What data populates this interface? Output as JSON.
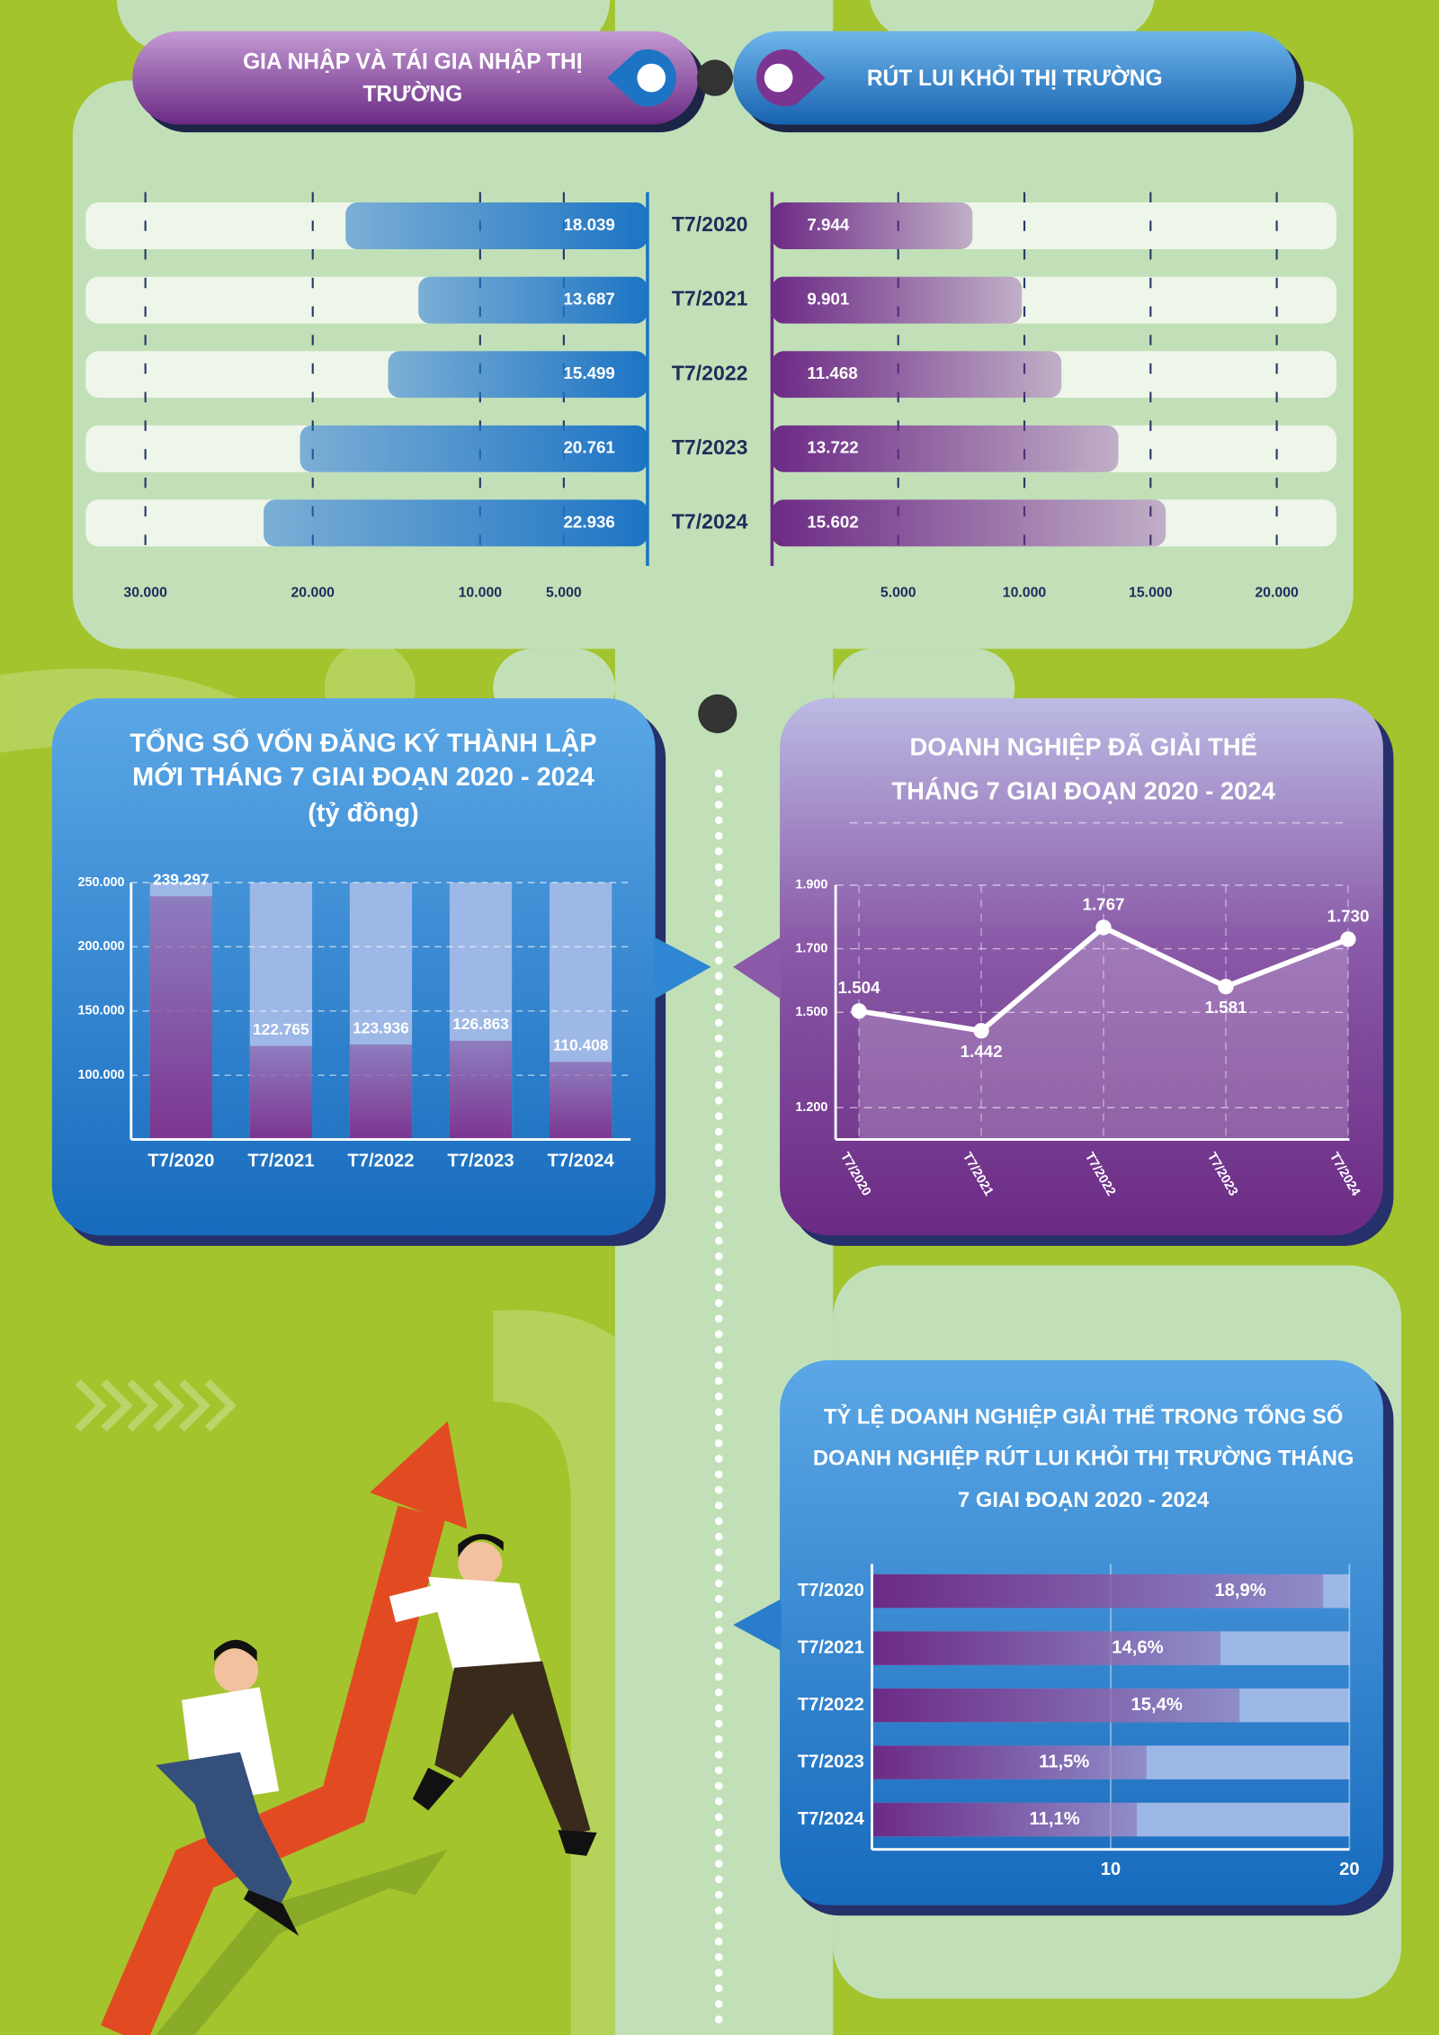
{
  "chart_data": [
    {
      "type": "butterfly",
      "categories": [
        "T7/2020",
        "T7/2021",
        "T7/2022",
        "T7/2023",
        "T7/2024"
      ],
      "grid": true,
      "series": [
        {
          "name": "GIA NHẬP VÀ TÁI GIA NHẬP THỊ TRƯỜNG",
          "color": "#1d74c4",
          "values": [
            18039,
            13687,
            15499,
            20761,
            22936
          ],
          "value_labels": [
            "18.039",
            "13.687",
            "15.499",
            "20.761",
            "22.936"
          ],
          "xlim": [
            0,
            30000
          ],
          "xticks": [
            {
              "value": 30000,
              "label": "30.000"
            },
            {
              "value": 20000,
              "label": "20.000"
            },
            {
              "value": 10000,
              "label": "10.000"
            },
            {
              "value": 5000,
              "label": "5.000"
            }
          ]
        },
        {
          "name": "RÚT LUI KHỎI THỊ TRƯỜNG",
          "color": "#6c2a85",
          "values": [
            7944,
            9901,
            11468,
            13722,
            15602
          ],
          "value_labels": [
            "7.944",
            "9.901",
            "11.468",
            "13.722",
            "15.602"
          ],
          "xlim": [
            0,
            20000
          ],
          "xticks": [
            {
              "value": 5000,
              "label": "5.000"
            },
            {
              "value": 10000,
              "label": "10.000"
            },
            {
              "value": 15000,
              "label": "15.000"
            },
            {
              "value": 20000,
              "label": "20.000"
            }
          ]
        }
      ]
    },
    {
      "type": "bar",
      "title": "TỔNG SỐ VỐN ĐĂNG KÝ THÀNH LẬP MỚI THÁNG 7 GIAI ĐOẠN 2020 - 2024",
      "subtitle": "(tỷ đồng)",
      "categories": [
        "T7/2020",
        "T7/2021",
        "T7/2022",
        "T7/2023",
        "T7/2024"
      ],
      "values": [
        239297,
        122765,
        123936,
        126863,
        110408
      ],
      "value_labels": [
        "239.297",
        "122.765",
        "123.936",
        "126.863",
        "110.408"
      ],
      "color": "#7b3590",
      "ylim": [
        50000,
        250000
      ],
      "yticks": [
        {
          "value": 100000,
          "label": "100.000"
        },
        {
          "value": 150000,
          "label": "150.000"
        },
        {
          "value": 200000,
          "label": "200.000"
        },
        {
          "value": 250000,
          "label": "250.000"
        }
      ],
      "grid": true
    },
    {
      "type": "line",
      "title": "DOANH NGHIỆP ĐÃ GIẢI THỂ THÁNG 7 GIAI ĐOẠN 2020 - 2024",
      "categories": [
        "T7/2020",
        "T7/2021",
        "T7/2022",
        "T7/2023",
        "T7/2024"
      ],
      "values": [
        1504,
        1442,
        1767,
        1581,
        1730
      ],
      "value_labels": [
        "1.504",
        "1.442",
        "1.767",
        "1.581",
        "1.730"
      ],
      "color": "#ffffff",
      "ylim": [
        1100,
        1900
      ],
      "yticks": [
        {
          "value": 1200,
          "label": "1.200"
        },
        {
          "value": 1500,
          "label": "1.500"
        },
        {
          "value": 1700,
          "label": "1.700"
        },
        {
          "value": 1900,
          "label": "1.900"
        }
      ],
      "grid": true
    },
    {
      "type": "hbar",
      "title": "TỶ LỆ DOANH NGHIỆP GIẢI THỂ TRONG TỔNG SỐ DOANH NGHIỆP RÚT LUI KHỎI THỊ TRƯỜNG THÁNG 7 GIAI ĐOẠN 2020 - 2024",
      "categories": [
        "T7/2020",
        "T7/2021",
        "T7/2022",
        "T7/2023",
        "T7/2024"
      ],
      "values": [
        18.9,
        14.6,
        15.4,
        11.5,
        11.1
      ],
      "value_labels": [
        "18,9%",
        "14,6%",
        "15,4%",
        "11,5%",
        "11,1%"
      ],
      "color": "#6c2a85",
      "xlim": [
        0,
        20
      ],
      "xticks": [
        10,
        20
      ],
      "grid": true
    }
  ]
}
